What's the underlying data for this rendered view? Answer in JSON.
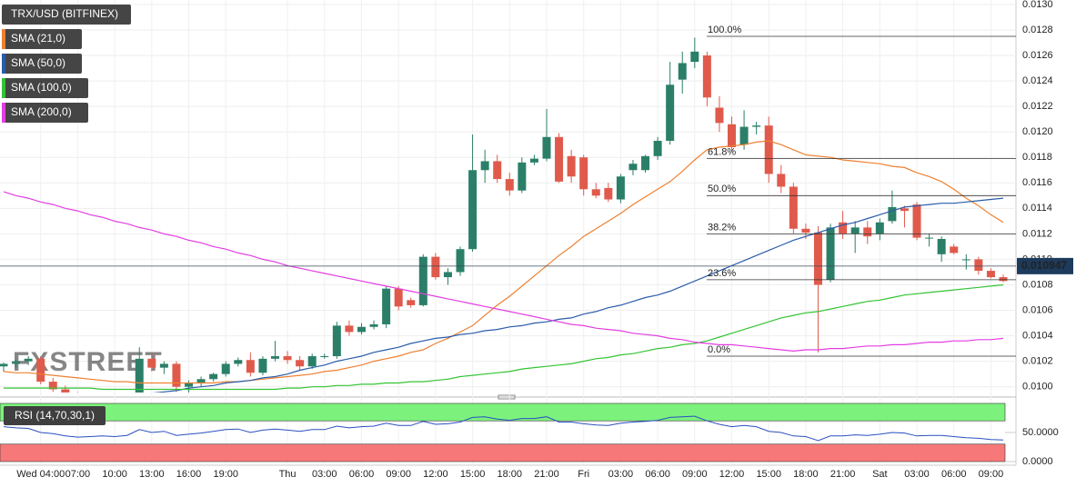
{
  "chart_data": [
    {
      "type": "candlestick",
      "title": "TRX/USD (BITFINEX)",
      "watermark": "FXSTREET",
      "categories": [
        null,
        null,
        null,
        "Wed 04:00",
        null,
        null,
        "07:00",
        null,
        null,
        "10:00",
        null,
        null,
        "13:00",
        null,
        null,
        "16:00",
        null,
        null,
        "19:00",
        null,
        null,
        null,
        null,
        "Thu",
        null,
        null,
        "03:00",
        null,
        null,
        "06:00",
        null,
        null,
        "09:00",
        null,
        null,
        "12:00",
        null,
        null,
        "15:00",
        null,
        null,
        "18:00",
        null,
        null,
        "21:00",
        null,
        null,
        "Fri",
        null,
        null,
        "03:00",
        null,
        null,
        "06:00",
        null,
        null,
        "09:00",
        null,
        null,
        "12:00",
        null,
        null,
        "15:00",
        null,
        null,
        "18:00",
        null,
        null,
        "21:00",
        null,
        null,
        "Sat",
        null,
        null,
        "03:00",
        null,
        null,
        "06:00",
        null,
        null,
        "09:00",
        null
      ],
      "open": [
        0.01016,
        0.01018,
        0.0102,
        0.01022,
        0.01004,
        0.00998,
        0.00992,
        0.0099,
        0.00988,
        0.00991,
        0.00989,
        0.00992,
        0.01022,
        0.01015,
        0.01018,
        0.01,
        0.01003,
        0.01006,
        0.0101,
        0.01018,
        0.01021,
        0.01011,
        0.01022,
        0.01024,
        0.01021,
        0.01016,
        0.01024,
        0.01024,
        0.01048,
        0.01043,
        0.01047,
        0.01049,
        0.01077,
        0.01068,
        0.01064,
        0.01102,
        0.01086,
        0.0109,
        0.01108,
        0.0117,
        0.01177,
        0.01163,
        0.01154,
        0.01176,
        0.01179,
        0.01196,
        0.01181,
        0.0118,
        0.01155,
        0.01156,
        0.01147,
        0.0117,
        0.0117,
        0.01181,
        0.01193,
        0.01241,
        0.01255,
        0.0126,
        0.01219,
        0.01206,
        0.0119,
        0.01204,
        0.01205,
        0.01167,
        0.01157,
        0.01124,
        0.01121,
        0.01084,
        0.01129,
        0.0112,
        0.01125,
        0.0112,
        0.0113,
        0.0114,
        0.01143,
        0.01117,
        0.01104,
        0.0111,
        0.011,
        0.011,
        0.01091,
        0.01086
      ],
      "high": [
        0.01019,
        0.01021,
        0.01024,
        0.01024,
        0.01007,
        0.01001,
        0.00996,
        0.00994,
        0.00993,
        0.00995,
        0.00994,
        0.01031,
        0.01027,
        0.0102,
        0.0102,
        0.01005,
        0.01008,
        0.01011,
        0.0102,
        0.01023,
        0.01027,
        0.01024,
        0.01036,
        0.01028,
        0.01024,
        0.01026,
        0.01026,
        0.01051,
        0.01052,
        0.0105,
        0.01052,
        0.01079,
        0.01079,
        0.0107,
        0.01104,
        0.01105,
        0.01093,
        0.0111,
        0.01198,
        0.01186,
        0.01182,
        0.01168,
        0.0118,
        0.01182,
        0.01218,
        0.01199,
        0.01186,
        0.01182,
        0.0116,
        0.0116,
        0.01167,
        0.01178,
        0.01182,
        0.01196,
        0.01255,
        0.01263,
        0.01274,
        0.01263,
        0.01228,
        0.01212,
        0.01217,
        0.01208,
        0.01212,
        0.01174,
        0.0116,
        0.01128,
        0.01126,
        0.01128,
        0.01138,
        0.0113,
        0.0113,
        0.01132,
        0.01154,
        0.01142,
        0.01145,
        0.0112,
        0.01118,
        0.01112,
        0.01104,
        0.01102,
        0.01093,
        0.01088
      ],
      "low": [
        0.01012,
        0.01015,
        0.01017,
        0.01002,
        0.00996,
        0.0099,
        0.00986,
        0.00984,
        0.00983,
        0.00986,
        0.00985,
        0.0099,
        0.01012,
        0.0101,
        0.00996,
        0.00995,
        0.01,
        0.01004,
        0.01008,
        0.01016,
        0.01008,
        0.01009,
        0.0102,
        0.01018,
        0.01013,
        0.01014,
        0.01022,
        0.01022,
        0.0104,
        0.01041,
        0.01045,
        0.01046,
        0.0106,
        0.01062,
        0.01063,
        0.01084,
        0.0108,
        0.01087,
        0.01106,
        0.0116,
        0.0116,
        0.0115,
        0.01152,
        0.01174,
        0.01177,
        0.0116,
        0.0116,
        0.0115,
        0.01148,
        0.01145,
        0.01144,
        0.01166,
        0.01168,
        0.01178,
        0.0119,
        0.0123,
        0.0125,
        0.0122,
        0.012,
        0.01185,
        0.01186,
        0.01198,
        0.0116,
        0.01152,
        0.0112,
        0.01116,
        0.01027,
        0.01082,
        0.01116,
        0.01105,
        0.01112,
        0.01115,
        0.01128,
        0.01125,
        0.01115,
        0.0111,
        0.01098,
        0.01104,
        0.01092,
        0.01088,
        0.01085,
        0.01082
      ],
      "close": [
        0.01018,
        0.0102,
        0.01022,
        0.01004,
        0.00998,
        0.00992,
        0.0099,
        0.00988,
        0.00991,
        0.00989,
        0.00992,
        0.01022,
        0.01015,
        0.01018,
        0.01,
        0.01003,
        0.01006,
        0.0101,
        0.01018,
        0.01021,
        0.01011,
        0.01022,
        0.01024,
        0.01021,
        0.01016,
        0.01024,
        0.01024,
        0.01048,
        0.01043,
        0.01047,
        0.01049,
        0.01077,
        0.01063,
        0.01064,
        0.01102,
        0.01086,
        0.0109,
        0.01108,
        0.0117,
        0.01177,
        0.01163,
        0.01154,
        0.01176,
        0.01179,
        0.01196,
        0.01161,
        0.01165,
        0.01155,
        0.0115,
        0.01147,
        0.01165,
        0.01175,
        0.01181,
        0.01193,
        0.01237,
        0.01254,
        0.01263,
        0.01227,
        0.01207,
        0.01188,
        0.01204,
        0.01205,
        0.01167,
        0.01157,
        0.01124,
        0.01121,
        0.0108,
        0.01125,
        0.0112,
        0.01125,
        0.01118,
        0.01129,
        0.01141,
        0.01138,
        0.01117,
        0.01117,
        0.01116,
        0.01105,
        0.011,
        0.01091,
        0.01086,
        0.01083
      ],
      "up_color": "#2b7f68",
      "down_color": "#e05a4c",
      "series": [
        {
          "name": "SMA (21,0)",
          "color": "#ee8030",
          "values": [
            0.01012,
            0.01011,
            0.01011,
            0.0101,
            0.01009,
            0.01008,
            0.01007,
            0.01006,
            0.01005,
            0.01004,
            0.01004,
            0.01003,
            0.01003,
            0.01003,
            0.01003,
            0.01003,
            0.01003,
            0.01003,
            0.01004,
            0.01004,
            0.01005,
            0.01006,
            0.01007,
            0.01008,
            0.01009,
            0.0101,
            0.01012,
            0.01013,
            0.01015,
            0.01017,
            0.0102,
            0.01022,
            0.01024,
            0.01027,
            0.01029,
            0.01034,
            0.01038,
            0.01043,
            0.01048,
            0.01056,
            0.01064,
            0.01071,
            0.01079,
            0.01087,
            0.01095,
            0.01103,
            0.0111,
            0.01118,
            0.01124,
            0.0113,
            0.01136,
            0.01143,
            0.01149,
            0.01155,
            0.01161,
            0.01169,
            0.01178,
            0.01186,
            0.01188,
            0.01189,
            0.0119,
            0.01192,
            0.01193,
            0.0119,
            0.01186,
            0.01182,
            0.01181,
            0.0118,
            0.01178,
            0.01177,
            0.01176,
            0.01175,
            0.01173,
            0.01172,
            0.01168,
            0.01165,
            0.01161,
            0.01155,
            0.01148,
            0.01142,
            0.01135,
            0.01129
          ]
        },
        {
          "name": "SMA (50,0)",
          "color": "#2a5caa",
          "values": [
            0.0099,
            0.0099,
            0.00991,
            0.00991,
            0.00991,
            0.00992,
            0.00992,
            0.00993,
            0.00993,
            0.00994,
            0.00994,
            0.00995,
            0.00995,
            0.00996,
            0.00997,
            0.00999,
            0.01,
            0.01001,
            0.01003,
            0.01004,
            0.01005,
            0.01007,
            0.01008,
            0.0101,
            0.01013,
            0.01015,
            0.01017,
            0.0102,
            0.01022,
            0.01024,
            0.01027,
            0.01029,
            0.01031,
            0.01034,
            0.01036,
            0.01038,
            0.01039,
            0.01041,
            0.01042,
            0.01044,
            0.01045,
            0.01047,
            0.01048,
            0.0105,
            0.01051,
            0.01053,
            0.01054,
            0.01057,
            0.01059,
            0.01062,
            0.01064,
            0.01067,
            0.0107,
            0.01072,
            0.01075,
            0.01079,
            0.01083,
            0.01087,
            0.01091,
            0.01095,
            0.01099,
            0.01103,
            0.01107,
            0.01111,
            0.01115,
            0.01118,
            0.01121,
            0.01124,
            0.01127,
            0.01129,
            0.01132,
            0.01135,
            0.01138,
            0.01141,
            0.01142,
            0.01143,
            0.01144,
            0.01144,
            0.01145,
            0.01146,
            0.01147,
            0.01148
          ]
        },
        {
          "name": "SMA (100,0)",
          "color": "#33c433",
          "values": [
            0.00999,
            0.00999,
            0.00999,
            0.00999,
            0.00999,
            0.00999,
            0.00999,
            0.00999,
            0.00998,
            0.00998,
            0.00998,
            0.00998,
            0.00998,
            0.00998,
            0.00998,
            0.00998,
            0.00998,
            0.00998,
            0.00998,
            0.00998,
            0.00998,
            0.00998,
            0.00998,
            0.00999,
            0.00999,
            0.01,
            0.01,
            0.01001,
            0.01001,
            0.01002,
            0.01002,
            0.01003,
            0.01003,
            0.01004,
            0.01004,
            0.01005,
            0.01006,
            0.01008,
            0.01009,
            0.0101,
            0.01011,
            0.01012,
            0.01014,
            0.01015,
            0.01016,
            0.01017,
            0.01018,
            0.0102,
            0.01022,
            0.01023,
            0.01025,
            0.01026,
            0.01028,
            0.0103,
            0.01031,
            0.01033,
            0.01034,
            0.01036,
            0.01039,
            0.01042,
            0.01045,
            0.01048,
            0.01051,
            0.01054,
            0.01056,
            0.01058,
            0.01059,
            0.01061,
            0.01063,
            0.01065,
            0.01067,
            0.01068,
            0.0107,
            0.01072,
            0.01073,
            0.01074,
            0.01075,
            0.01076,
            0.01077,
            0.01078,
            0.01079,
            0.0108
          ]
        },
        {
          "name": "SMA (200,0)",
          "color": "#e23ee2",
          "values": [
            0.01153,
            0.0115,
            0.01148,
            0.01145,
            0.01143,
            0.0114,
            0.01138,
            0.01135,
            0.01133,
            0.0113,
            0.01128,
            0.01125,
            0.01123,
            0.0112,
            0.01118,
            0.01115,
            0.01113,
            0.0111,
            0.01108,
            0.01105,
            0.01103,
            0.011,
            0.01098,
            0.01095,
            0.01093,
            0.01091,
            0.01089,
            0.01087,
            0.01085,
            0.01083,
            0.01081,
            0.01079,
            0.01077,
            0.01075,
            0.01073,
            0.01071,
            0.01069,
            0.01067,
            0.01065,
            0.01063,
            0.01061,
            0.01059,
            0.01057,
            0.01055,
            0.01053,
            0.01051,
            0.01049,
            0.01048,
            0.01046,
            0.01045,
            0.01044,
            0.01042,
            0.01041,
            0.0104,
            0.01038,
            0.01037,
            0.01035,
            0.01034,
            0.01033,
            0.01033,
            0.01032,
            0.01031,
            0.0103,
            0.01029,
            0.01028,
            0.01029,
            0.01029,
            0.0103,
            0.0103,
            0.01031,
            0.01032,
            0.01032,
            0.01033,
            0.01033,
            0.01034,
            0.01035,
            0.01035,
            0.01036,
            0.01036,
            0.01037,
            0.01037,
            0.01038
          ]
        }
      ],
      "ylim": [
        0.009955,
        0.013035
      ],
      "yticks": [
        {
          "value": 0.01,
          "label": "0.0100"
        },
        0.0102,
        0.0104,
        0.0106,
        0.0108,
        {
          "value": 0.011,
          "label": "0.0110"
        },
        0.0112,
        0.0114,
        0.0116,
        0.0118,
        {
          "value": 0.012,
          "label": "0.0120"
        },
        0.0122,
        0.0124,
        0.0126,
        0.0128,
        {
          "value": 0.013,
          "label": "0.0130"
        }
      ],
      "grid": true,
      "last_price": 0.010947,
      "fibonacci": [
        {
          "value": 0.01275,
          "label": "100.0%"
        },
        {
          "value": 0.01179,
          "label": "61.8%"
        },
        {
          "value": 0.0115,
          "label": "50.0%"
        },
        {
          "value": 0.0112,
          "label": "38.2%"
        },
        {
          "value": 0.01084,
          "label": "23.6%"
        },
        {
          "value": 0.01024,
          "label": "0.0%"
        }
      ]
    },
    {
      "type": "line",
      "title": "RSI (14,70,30,1)",
      "color": "#2a4fc0",
      "values": [
        60,
        58,
        57,
        50,
        48,
        44,
        42,
        43,
        44,
        43,
        45,
        55,
        50,
        52,
        45,
        47,
        49,
        52,
        55,
        56,
        50,
        54,
        56,
        54,
        52,
        55,
        55,
        61,
        58,
        60,
        61,
        66,
        62,
        62,
        69,
        64,
        65,
        68,
        76,
        77,
        73,
        71,
        74,
        74,
        77,
        68,
        68,
        65,
        63,
        62,
        66,
        68,
        69,
        71,
        76,
        77,
        78,
        70,
        64,
        60,
        62,
        60,
        52,
        50,
        44,
        43,
        36,
        44,
        44,
        46,
        45,
        47,
        50,
        49,
        44,
        45,
        45,
        43,
        41,
        40,
        38,
        37
      ],
      "ylim": [
        0,
        100
      ],
      "yticks": [
        {
          "value": 0,
          "label": "0.0000"
        },
        {
          "value": 50,
          "label": "50.0000"
        }
      ],
      "bands": [
        {
          "from": 70,
          "to": 100,
          "color": "#7cf27c"
        },
        {
          "from": 0,
          "to": 30,
          "color": "#f77878"
        }
      ]
    }
  ]
}
